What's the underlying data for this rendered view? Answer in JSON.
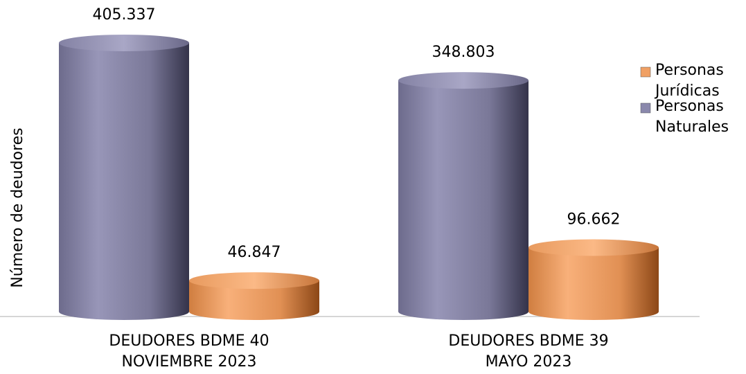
{
  "chart_data": {
    "type": "bar3d",
    "ylabel": "Número de deudores",
    "categories": [
      "DEUDORES BDME 40 NOVIEMBRE 2023",
      "DEUDORES BDME 39 MAYO 2023"
    ],
    "series": [
      {
        "name": "Personas Naturales",
        "color": "#8a88ac",
        "values": [
          405337,
          348803
        ],
        "value_labels": [
          "405.337",
          "348.803"
        ]
      },
      {
        "name": "Personas Jurídicas",
        "color": "#f0a064",
        "values": [
          46847,
          96662
        ],
        "value_labels": [
          "46.847",
          "96.662"
        ]
      }
    ],
    "legend": "right"
  }
}
